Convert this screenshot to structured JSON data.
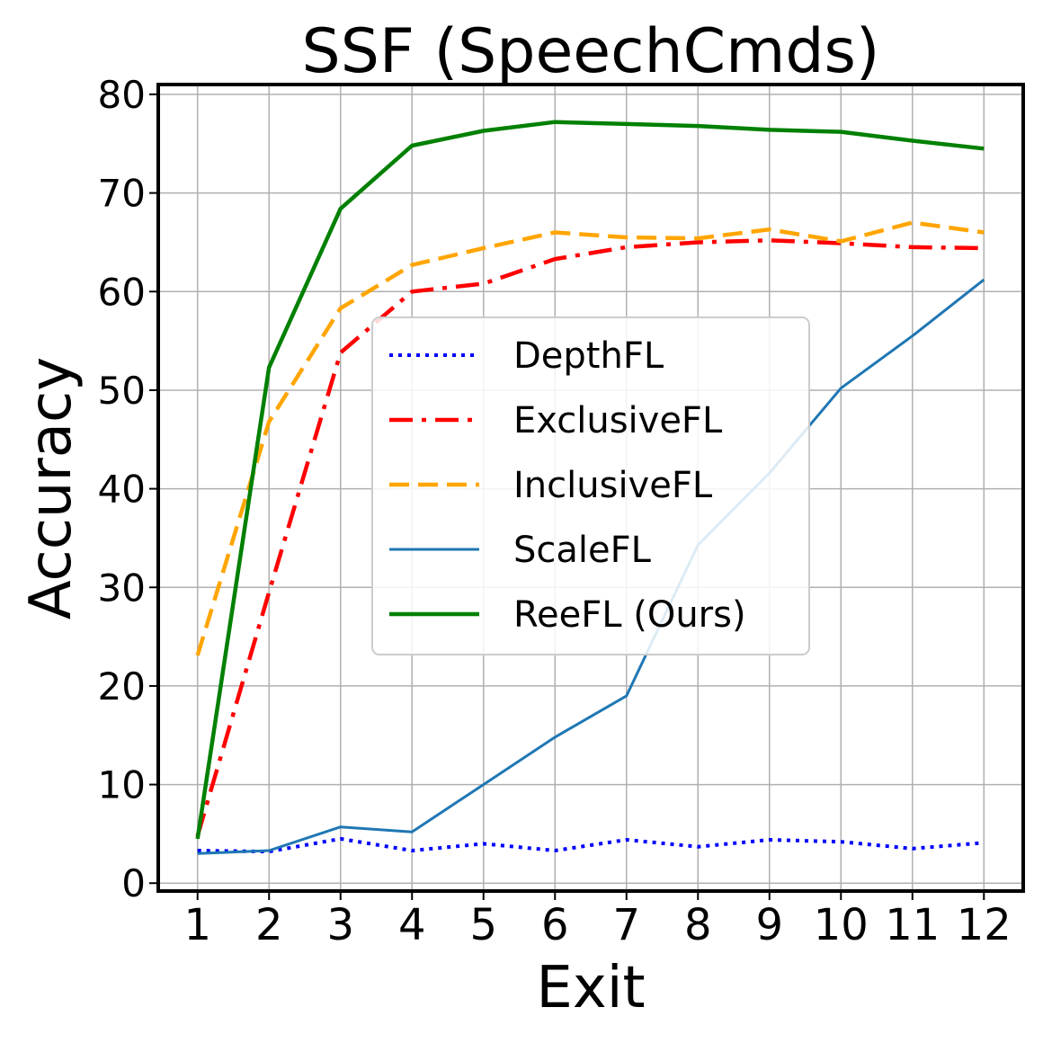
{
  "chart_data": {
    "type": "line",
    "title": "SSF (SpeechCmds)",
    "xlabel": "Exit",
    "ylabel": "Accuracy",
    "x": [
      1,
      2,
      3,
      4,
      5,
      6,
      7,
      8,
      9,
      10,
      11,
      12
    ],
    "x_tick_labels": [
      "1",
      "2",
      "3",
      "4",
      "5",
      "6",
      "7",
      "8",
      "9",
      "10",
      "11",
      "12"
    ],
    "y_ticks": [
      0,
      10,
      20,
      30,
      40,
      50,
      60,
      70,
      80
    ],
    "y_tick_labels": [
      "0",
      "10",
      "20",
      "30",
      "40",
      "50",
      "60",
      "70",
      "80"
    ],
    "xlim": [
      0.45,
      12.55
    ],
    "ylim": [
      -0.8,
      81
    ],
    "grid": true,
    "legend_position": "center",
    "series": [
      {
        "name": "DepthFL",
        "color": "#0000ff",
        "style": "dotted",
        "values": [
          3.3,
          3.2,
          4.5,
          3.3,
          4.0,
          3.3,
          4.4,
          3.7,
          4.4,
          4.2,
          3.5,
          4.1
        ]
      },
      {
        "name": "ExclusiveFL",
        "color": "#ff0000",
        "style": "dashdot",
        "values": [
          4.8,
          29.5,
          53.8,
          60.0,
          60.8,
          63.3,
          64.5,
          65.0,
          65.2,
          64.9,
          64.5,
          64.4
        ]
      },
      {
        "name": "InclusiveFL",
        "color": "#ffa500",
        "style": "dashed",
        "values": [
          23.1,
          46.8,
          58.3,
          62.7,
          64.4,
          66.0,
          65.5,
          65.4,
          66.3,
          65.1,
          67.0,
          66.0
        ]
      },
      {
        "name": "ScaleFL",
        "color": "#1f77b4",
        "style": "solid-thin",
        "values": [
          3.0,
          3.3,
          5.7,
          5.2,
          10.0,
          14.8,
          19.0,
          34.3,
          41.6,
          50.2,
          55.5,
          61.2
        ]
      },
      {
        "name": "ReeFL (Ours)",
        "color": "#008000",
        "style": "solid",
        "values": [
          4.5,
          52.3,
          68.4,
          74.8,
          76.3,
          77.2,
          77.0,
          76.8,
          76.4,
          76.2,
          75.3,
          74.5
        ]
      }
    ]
  }
}
